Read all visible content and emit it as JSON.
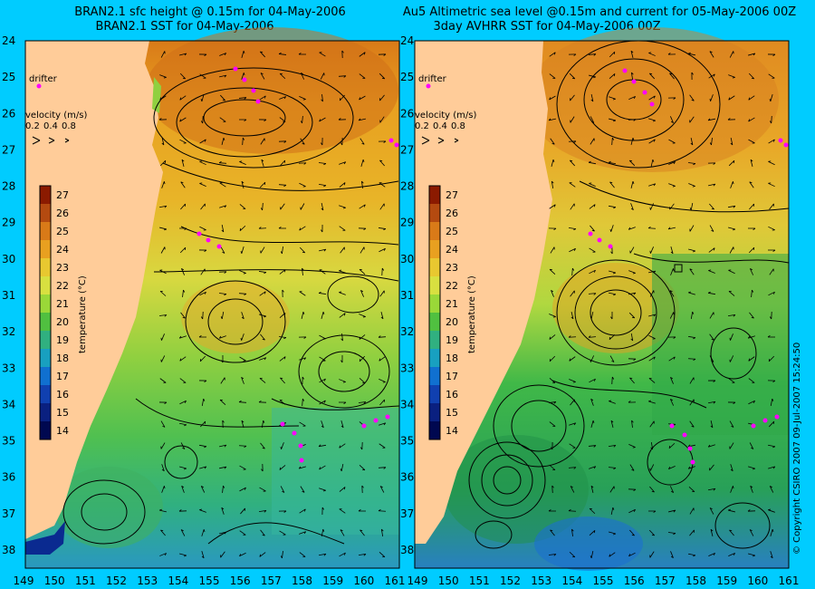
{
  "left_panel": {
    "title_line1": "BRAN2.1 sfc height @ 0.15m for 04-May-2006",
    "title_line2": "BRAN2.1 SST for 04-May-2006"
  },
  "right_panel": {
    "title_line1": "Au5 Altimetric sea level  @0.15m and current for 05-May-2006 00Z",
    "title_line2": "3day AVHRR SST for 04-May-2006 00Z"
  },
  "legend": {
    "drifter_label": "drifter",
    "velocity_label": "velocity (m/s)",
    "velocity_scale": [
      "0.2",
      "0.4",
      "0.8"
    ]
  },
  "colorbar": {
    "label": "temperature (°C)",
    "ticks": [
      "27",
      "26",
      "25",
      "24",
      "23",
      "22",
      "21",
      "20",
      "19",
      "18",
      "17",
      "16",
      "15",
      "14"
    ],
    "colors": [
      "#8b1a00",
      "#b44a10",
      "#d97a18",
      "#e8a020",
      "#e8c830",
      "#d8e040",
      "#9ad838",
      "#50c040",
      "#30b080",
      "#18a0c0",
      "#1070d0",
      "#1040b0",
      "#0a2080",
      "#000850"
    ]
  },
  "axes": {
    "lat_ticks": [
      "24",
      "25",
      "26",
      "27",
      "28",
      "29",
      "30",
      "31",
      "32",
      "33",
      "34",
      "35",
      "36",
      "37",
      "38"
    ],
    "lon_ticks": [
      "149",
      "150",
      "151",
      "152",
      "153",
      "154",
      "155",
      "156",
      "157",
      "158",
      "159",
      "160",
      "161"
    ],
    "lon_ticks_right": [
      "149",
      "150",
      "151",
      "152",
      "153",
      "154",
      "155",
      "156",
      "157",
      "158",
      "159",
      "160",
      "161"
    ]
  },
  "copyright": "© Copyright CSIRO 2007   09-Jul-2007 15:24:50",
  "colors": {
    "background": "#00ccff",
    "land": "#ffcc99",
    "drifter_track": "#ff00ff"
  }
}
